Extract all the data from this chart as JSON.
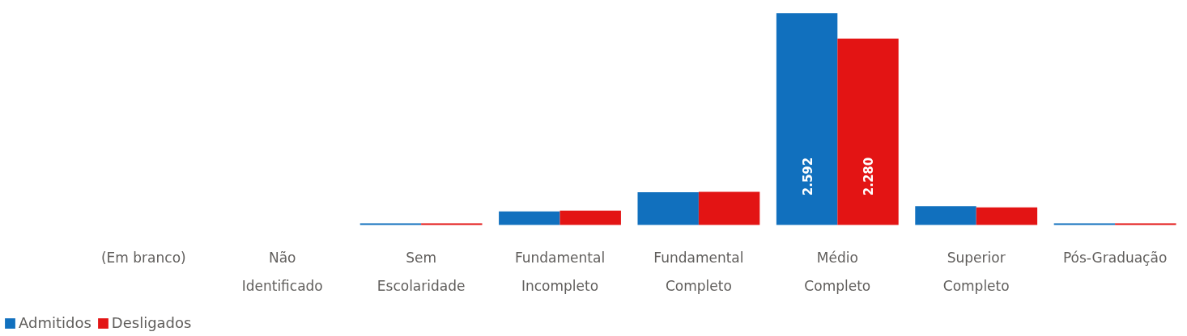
{
  "chart_data": {
    "type": "bar",
    "categories": [
      "(Em branco)",
      "Não\nIdentificado",
      "Sem\nEscolaridade",
      "Fundamental\nIncompleto",
      "Fundamental\nCompleto",
      "Médio\nCompleto",
      "Superior\nCompleto",
      "Pós-Graduação"
    ],
    "series": [
      {
        "name": "Admitidos",
        "color": "#1170be",
        "values": [
          0,
          0,
          20,
          165,
          400,
          2592,
          230,
          20
        ],
        "value_labels": [
          null,
          null,
          null,
          null,
          null,
          "2.592",
          null,
          null
        ]
      },
      {
        "name": "Desligados",
        "color": "#e31414",
        "values": [
          0,
          0,
          20,
          175,
          405,
          2280,
          215,
          20
        ],
        "value_labels": [
          null,
          null,
          null,
          null,
          null,
          "2.280",
          null,
          null
        ]
      }
    ],
    "legend": "bottom left"
  }
}
